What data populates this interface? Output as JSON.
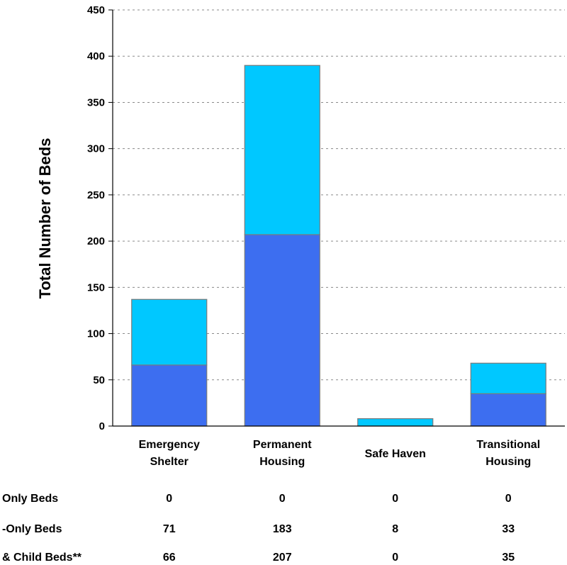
{
  "chart_data": {
    "type": "bar",
    "stacked": true,
    "ylabel": "Total Number of Beds",
    "ylim": [
      0,
      450
    ],
    "yticks": [
      0,
      50,
      100,
      150,
      200,
      250,
      300,
      350,
      400,
      450
    ],
    "grid": true,
    "categories": [
      [
        "Emergency",
        "Shelter"
      ],
      [
        "Permanent",
        "Housing"
      ],
      [
        "Safe Haven"
      ],
      [
        "Transitional",
        "Housing"
      ]
    ],
    "series": [
      {
        "color": "#3d6ef0",
        "values": [
          66,
          207,
          0,
          35
        ]
      },
      {
        "color": "#00c8ff",
        "values": [
          71,
          183,
          8,
          33
        ]
      }
    ],
    "table": {
      "rows": [
        {
          "label": "Only Beds",
          "values": [
            "0",
            "0",
            "0",
            "0"
          ]
        },
        {
          "label": "-Only Beds",
          "values": [
            "71",
            "183",
            "8",
            "33"
          ]
        },
        {
          "label": "& Child Beds**",
          "values": [
            "66",
            "207",
            "0",
            "35"
          ]
        }
      ]
    }
  }
}
